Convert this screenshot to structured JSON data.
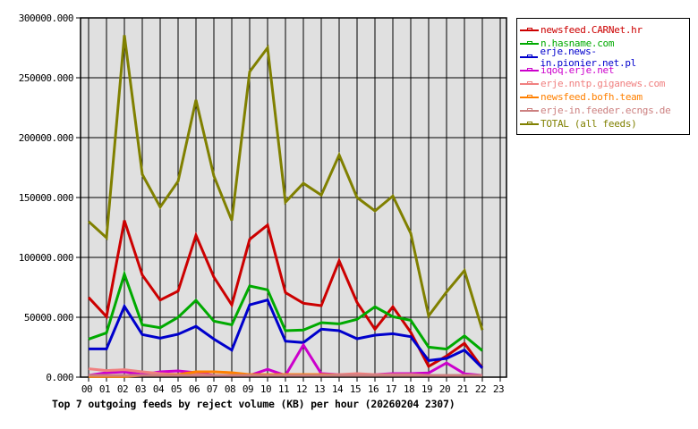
{
  "chart_data": {
    "type": "line",
    "title": "Top 7 outgoing feeds by reject volume (KB) per hour (20260204 2307)",
    "xlabel": "",
    "ylabel": "",
    "ylim": [
      0,
      300000
    ],
    "yticks": [
      "0.000",
      "50000.000",
      "100000.000",
      "150000.000",
      "200000.000",
      "250000.000",
      "300000.000"
    ],
    "x": [
      "00",
      "01",
      "02",
      "03",
      "04",
      "05",
      "06",
      "07",
      "08",
      "09",
      "10",
      "11",
      "12",
      "13",
      "14",
      "15",
      "16",
      "17",
      "18",
      "19",
      "20",
      "21",
      "22",
      "23"
    ],
    "grid": true,
    "legend_position": "right",
    "series": [
      {
        "name": "newsfeed.CARNet.hr",
        "color": "#cc0000",
        "values": [
          66600,
          50500,
          130800,
          85300,
          64400,
          71900,
          118400,
          83600,
          60400,
          115100,
          127000,
          70600,
          61700,
          59700,
          97200,
          62400,
          40100,
          58700,
          37500,
          9000,
          17700,
          28300,
          7700
        ]
      },
      {
        "name": "n.hasname.com",
        "color": "#00aa00",
        "values": [
          31800,
          37000,
          86000,
          43700,
          41300,
          50000,
          64200,
          46800,
          43700,
          76100,
          72900,
          38800,
          39300,
          45500,
          44500,
          48300,
          58700,
          50500,
          47500,
          25100,
          23400,
          34500,
          22200
        ]
      },
      {
        "name": "erje.news-in.pionier.net.pl",
        "color": "#0000cc",
        "values": [
          23600,
          23600,
          59200,
          35600,
          32600,
          35800,
          42500,
          31800,
          22600,
          60400,
          64400,
          30100,
          28900,
          40100,
          38800,
          32100,
          35100,
          36300,
          33800,
          13900,
          15700,
          22600,
          7700
        ]
      },
      {
        "name": "iqoq.erje.net",
        "color": "#cc00cc",
        "values": [
          1500,
          3700,
          4500,
          2200,
          4500,
          5200,
          3700,
          1500,
          1500,
          1500,
          6600,
          1500,
          26900,
          3000,
          2200,
          2200,
          2200,
          3000,
          3000,
          3500,
          11900,
          2800,
          1500
        ]
      },
      {
        "name": "erje.nntp.giganews.com",
        "color": "#f08080",
        "values": [
          7000,
          5500,
          6300,
          4500,
          3000,
          2200,
          2200,
          1500,
          1500,
          1500,
          1500,
          2200,
          2200,
          2200,
          2200,
          3000,
          2200,
          2200,
          2200,
          1500,
          1500,
          1500,
          1500
        ]
      },
      {
        "name": "newsfeed.bofh.team",
        "color": "#ff8000",
        "values": [
          500,
          500,
          500,
          1500,
          1500,
          2200,
          4500,
          4500,
          3700,
          2200,
          2200,
          2200,
          2200,
          2200,
          1500,
          1500,
          1500,
          1500,
          1500,
          1500,
          1500,
          1500,
          1500
        ]
      },
      {
        "name": "erje-in.feeder.ecngs.de",
        "color": "#cc8080",
        "values": [
          1500,
          1500,
          1500,
          1500,
          1500,
          1500,
          1500,
          1500,
          1500,
          1500,
          1500,
          1500,
          1500,
          1500,
          1500,
          1500,
          1500,
          1500,
          1500,
          1500,
          1500,
          1500,
          1500
        ]
      },
      {
        "name": "TOTAL (all feeds)",
        "color": "#808000",
        "values": [
          130000,
          116400,
          285500,
          169300,
          142000,
          163600,
          231500,
          168000,
          130800,
          255100,
          275000,
          146200,
          161900,
          152000,
          185500,
          150000,
          138800,
          151200,
          120100,
          51200,
          71100,
          89000,
          39300
        ]
      }
    ]
  },
  "legend": {
    "items": [
      {
        "label": "newsfeed.CARNet.hr",
        "color": "#cc0000"
      },
      {
        "label": "n.hasname.com",
        "color": "#00aa00"
      },
      {
        "label": "erje.news-in.pionier.net.pl",
        "color": "#0000cc"
      },
      {
        "label": "iqoq.erje.net",
        "color": "#cc00cc"
      },
      {
        "label": "erje.nntp.giganews.com",
        "color": "#f08080"
      },
      {
        "label": "newsfeed.bofh.team",
        "color": "#ff8000"
      },
      {
        "label": "erje-in.feeder.ecngs.de",
        "color": "#cc8080"
      },
      {
        "label": "TOTAL (all feeds)",
        "color": "#808000"
      }
    ]
  },
  "caption": "Top 7 outgoing feeds by reject volume (KB) per hour (20260204 2307)"
}
